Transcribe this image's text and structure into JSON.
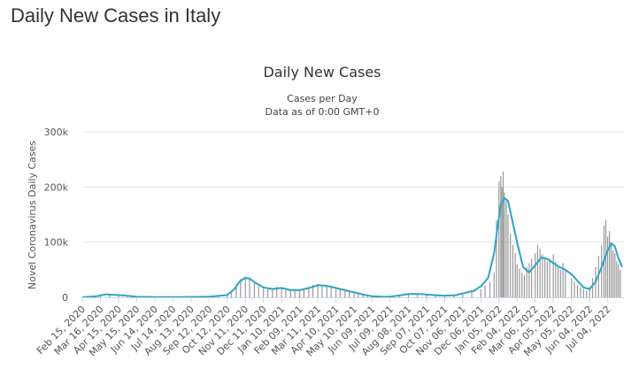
{
  "page_title": "Daily New Cases in Italy",
  "chart_data": {
    "type": "bar",
    "title": "Daily New Cases",
    "subtitle_lines": [
      "Cases per Day",
      "Data as of 0:00 GMT+0"
    ],
    "ylabel": "Novel Coronavirus Daily Cases",
    "xlabel": "",
    "ylim": [
      0,
      300000
    ],
    "y_ticks": [
      0,
      100000,
      200000,
      300000
    ],
    "y_tick_labels": [
      "0",
      "100k",
      "200k",
      "300k"
    ],
    "x_tick_labels": [
      "Feb 15, 2020",
      "Mar 16, 2020",
      "Apr 15, 2020",
      "May 15, 2020",
      "Jun 14, 2020",
      "Jul 14, 2020",
      "Aug 13, 2020",
      "Sep 12, 2020",
      "Oct 12, 2020",
      "Nov 11, 2020",
      "Dec 11, 2020",
      "Jan 10, 2021",
      "Feb 09, 2021",
      "Mar 11, 2021",
      "Apr 10, 2021",
      "May 10, 2021",
      "Jun 09, 2021",
      "Jul 09, 2021",
      "Aug 08, 2021",
      "Sep 07, 2021",
      "Oct 07, 2021",
      "Nov 06, 2021",
      "Dec 06, 2021",
      "Jan 05, 2022",
      "Feb 04, 2022",
      "Mar 06, 2022",
      "Apr 05, 2022",
      "May 05, 2022",
      "Jun 04, 2022",
      "Jul 04, 2022"
    ],
    "grid": true,
    "legend": "none",
    "colors": {
      "bars": "#999999",
      "moving_average": "#2fa3c8",
      "grid": "#e6e6e6",
      "axis": "#ccd6eb"
    },
    "series": [
      {
        "type": "bar",
        "x": [
          "2020-02-15",
          "2020-03-01",
          "2020-03-16",
          "2020-03-31",
          "2020-04-15",
          "2020-04-30",
          "2020-05-15",
          "2020-05-30",
          "2020-06-14",
          "2020-06-29",
          "2020-07-14",
          "2020-07-29",
          "2020-08-13",
          "2020-08-28",
          "2020-09-12",
          "2020-09-27",
          "2020-10-12",
          "2020-10-19",
          "2020-10-27",
          "2020-11-03",
          "2020-11-11",
          "2020-11-18",
          "2020-11-26",
          "2020-12-03",
          "2020-12-11",
          "2020-12-18",
          "2020-12-26",
          "2021-01-02",
          "2021-01-10",
          "2021-01-17",
          "2021-01-25",
          "2021-02-01",
          "2021-02-09",
          "2021-02-16",
          "2021-02-24",
          "2021-03-03",
          "2021-03-11",
          "2021-03-18",
          "2021-03-26",
          "2021-04-02",
          "2021-04-10",
          "2021-04-17",
          "2021-04-25",
          "2021-05-02",
          "2021-05-10",
          "2021-05-17",
          "2021-05-25",
          "2021-06-01",
          "2021-06-09",
          "2021-06-24",
          "2021-07-09",
          "2021-07-24",
          "2021-08-08",
          "2021-08-23",
          "2021-09-07",
          "2021-09-22",
          "2021-10-07",
          "2021-10-22",
          "2021-11-06",
          "2021-11-21",
          "2021-12-06",
          "2021-12-13",
          "2021-12-21",
          "2021-12-28",
          "2022-01-01",
          "2022-01-05",
          "2022-01-08",
          "2022-01-10",
          "2022-01-12",
          "2022-01-14",
          "2022-01-17",
          "2022-01-20",
          "2022-01-24",
          "2022-01-28",
          "2022-02-01",
          "2022-02-04",
          "2022-02-08",
          "2022-02-12",
          "2022-02-16",
          "2022-02-20",
          "2022-02-24",
          "2022-02-28",
          "2022-03-06",
          "2022-03-10",
          "2022-03-14",
          "2022-03-18",
          "2022-03-22",
          "2022-03-26",
          "2022-03-30",
          "2022-04-05",
          "2022-04-09",
          "2022-04-13",
          "2022-04-17",
          "2022-04-21",
          "2022-04-25",
          "2022-05-05",
          "2022-05-10",
          "2022-05-15",
          "2022-05-20",
          "2022-05-25",
          "2022-05-30",
          "2022-06-04",
          "2022-06-09",
          "2022-06-14",
          "2022-06-19",
          "2022-06-24",
          "2022-06-28",
          "2022-07-01",
          "2022-07-04",
          "2022-07-07",
          "2022-07-10",
          "2022-07-13",
          "2022-07-16",
          "2022-07-19",
          "2022-07-22",
          "2022-07-25"
        ],
        "values": [
          0,
          1500,
          5500,
          6000,
          3500,
          1800,
          800,
          400,
          300,
          200,
          250,
          500,
          800,
          1500,
          1800,
          2500,
          6000,
          12000,
          25000,
          33000,
          38000,
          34000,
          26000,
          20000,
          17000,
          15000,
          14000,
          19000,
          18000,
          13000,
          12000,
          13000,
          14000,
          15000,
          19000,
          23000,
          24000,
          22000,
          21000,
          18000,
          17000,
          15000,
          13000,
          11000,
          9000,
          6000,
          4000,
          2500,
          1500,
          1000,
          1500,
          4000,
          6500,
          6000,
          5000,
          3500,
          3000,
          3500,
          6000,
          10000,
          15000,
          21000,
          28000,
          45000,
          140000,
          210000,
          220000,
          200000,
          228000,
          190000,
          175000,
          150000,
          115000,
          95000,
          80000,
          60000,
          52000,
          45000,
          40000,
          55000,
          62000,
          70000,
          80000,
          95000,
          88000,
          78000,
          72000,
          65000,
          70000,
          78000,
          65000,
          55000,
          50000,
          62000,
          48000,
          35000,
          28000,
          22000,
          18000,
          15000,
          12000,
          18000,
          35000,
          55000,
          75000,
          95000,
          130000,
          140000,
          110000,
          120000,
          95000,
          85000,
          80000,
          65000,
          60000,
          50000
        ]
      },
      {
        "type": "line",
        "name": "",
        "x": [
          "2020-02-15",
          "2020-03-10",
          "2020-03-25",
          "2020-04-15",
          "2020-05-01",
          "2020-05-15",
          "2020-06-15",
          "2020-07-15",
          "2020-08-15",
          "2020-09-15",
          "2020-10-12",
          "2020-10-24",
          "2020-11-01",
          "2020-11-10",
          "2020-11-18",
          "2020-11-28",
          "2020-12-11",
          "2020-12-26",
          "2021-01-10",
          "2021-01-25",
          "2021-02-09",
          "2021-02-25",
          "2021-03-11",
          "2021-03-25",
          "2021-04-10",
          "2021-04-25",
          "2021-05-10",
          "2021-05-25",
          "2021-06-09",
          "2021-06-25",
          "2021-07-09",
          "2021-07-25",
          "2021-08-08",
          "2021-08-25",
          "2021-09-07",
          "2021-09-25",
          "2021-10-07",
          "2021-10-25",
          "2021-11-06",
          "2021-11-25",
          "2021-12-06",
          "2021-12-18",
          "2021-12-28",
          "2022-01-03",
          "2022-01-08",
          "2022-01-14",
          "2022-01-20",
          "2022-01-26",
          "2022-02-04",
          "2022-02-14",
          "2022-02-24",
          "2022-03-06",
          "2022-03-16",
          "2022-03-26",
          "2022-04-05",
          "2022-04-15",
          "2022-04-25",
          "2022-05-05",
          "2022-05-15",
          "2022-05-25",
          "2022-06-04",
          "2022-06-14",
          "2022-06-24",
          "2022-07-04",
          "2022-07-10",
          "2022-07-16",
          "2022-07-22",
          "2022-07-28"
        ],
        "values": [
          0,
          2000,
          5500,
          4000,
          2500,
          1000,
          300,
          250,
          600,
          1500,
          4000,
          15000,
          28000,
          35000,
          34000,
          26000,
          18000,
          15000,
          17000,
          13000,
          13000,
          17000,
          22000,
          21000,
          17000,
          13000,
          9000,
          5000,
          2000,
          1000,
          1200,
          3500,
          6000,
          6200,
          5000,
          3500,
          3000,
          3800,
          7000,
          12000,
          20000,
          35000,
          80000,
          130000,
          168000,
          180000,
          175000,
          145000,
          100000,
          55000,
          45000,
          58000,
          72000,
          70000,
          62000,
          55000,
          50000,
          42000,
          30000,
          18000,
          15000,
          28000,
          55000,
          85000,
          98000,
          92000,
          70000,
          55000
        ]
      }
    ]
  }
}
